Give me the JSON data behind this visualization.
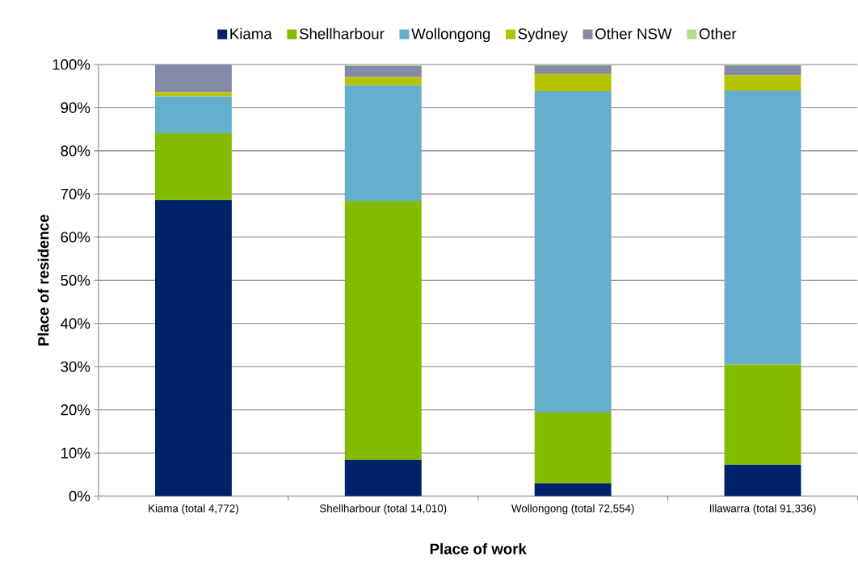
{
  "chart_data": {
    "type": "bar",
    "stacked": true,
    "xlabel": "Place of work",
    "ylabel": "Place of residence",
    "categories": [
      "Kiama (total 4,772)",
      "Shellharbour (total 14,010)",
      "Wollongong (total 72,554)",
      "Illawarra (total 91,336)"
    ],
    "series": [
      {
        "name": "Kiama",
        "color": "#00226a",
        "values": [
          68.6,
          8.4,
          3.0,
          7.3
        ]
      },
      {
        "name": "Shellharbour",
        "color": "#84bb00",
        "values": [
          15.5,
          60.0,
          16.4,
          23.2
        ]
      },
      {
        "name": "Wollongong",
        "color": "#65afcd",
        "values": [
          8.5,
          26.8,
          74.4,
          63.5
        ]
      },
      {
        "name": "Sydney",
        "color": "#b5c400",
        "values": [
          1.0,
          1.9,
          4.0,
          3.5
        ]
      },
      {
        "name": "Other NSW",
        "color": "#8588a6",
        "values": [
          6.4,
          2.6,
          2.0,
          2.3
        ]
      },
      {
        "name": "Other",
        "color": "#b0e08a",
        "values": [
          0.0,
          0.3,
          0.2,
          0.2
        ]
      }
    ],
    "ylim": [
      0,
      100
    ],
    "yticks": [
      {
        "value": 0,
        "label": "0%"
      },
      {
        "value": 10,
        "label": "10%"
      },
      {
        "value": 20,
        "label": "20%"
      },
      {
        "value": 30,
        "label": "30%"
      },
      {
        "value": 40,
        "label": "40%"
      },
      {
        "value": 50,
        "label": "50%"
      },
      {
        "value": 60,
        "label": "60%"
      },
      {
        "value": 70,
        "label": "70%"
      },
      {
        "value": 80,
        "label": "80%"
      },
      {
        "value": 90,
        "label": "90%"
      },
      {
        "value": 100,
        "label": "100%"
      }
    ],
    "grid": "y",
    "legend": "top"
  }
}
